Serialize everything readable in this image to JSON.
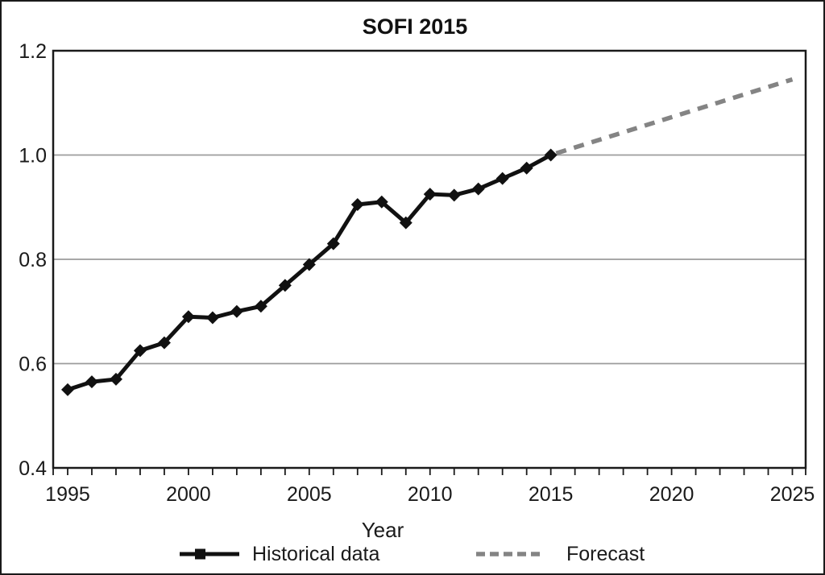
{
  "figure": {
    "title": "SOFI 2015",
    "x_axis_title": "Year"
  },
  "colors": {
    "historical_line": "#111111",
    "forecast_line": "#848484",
    "gridline": "#9c9c9c",
    "frame": "#1a1a1a",
    "background": "#ffffff"
  },
  "legend": {
    "historical_label": "Historical data",
    "forecast_label": "Forecast"
  },
  "chart_data": {
    "type": "line",
    "title": "SOFI 2015",
    "xlabel": "Year",
    "ylabel": "",
    "xlim": [
      1994.4,
      2025.55
    ],
    "ylim": [
      0.4,
      1.2
    ],
    "grid": "horizontal",
    "legend_position": "bottom",
    "x_major_ticks": [
      1995,
      2000,
      2005,
      2010,
      2015,
      2020,
      2025
    ],
    "x_major_tick_labels": [
      "1995",
      "2000",
      "2005",
      "2010",
      "2015",
      "2020",
      "2025"
    ],
    "x_minor_tick_step": 1,
    "y_ticks": [
      0.4,
      0.6,
      0.8,
      1.0,
      1.2
    ],
    "y_tick_labels": [
      "0.4",
      "0.6",
      "0.8",
      "1.0",
      "1.2"
    ],
    "series": [
      {
        "name": "Historical data",
        "style": "solid",
        "color": "#111111",
        "marker": "diamond",
        "x": [
          1995,
          1996,
          1997,
          1998,
          1999,
          2000,
          2001,
          2002,
          2003,
          2004,
          2005,
          2006,
          2007,
          2008,
          2009,
          2010,
          2011,
          2012,
          2013,
          2014,
          2015
        ],
        "values": [
          0.55,
          0.565,
          0.57,
          0.625,
          0.64,
          0.69,
          0.688,
          0.7,
          0.71,
          0.75,
          0.79,
          0.83,
          0.905,
          0.91,
          0.87,
          0.925,
          0.923,
          0.935,
          0.955,
          0.975,
          1.0
        ]
      },
      {
        "name": "Forecast",
        "style": "dashed",
        "color": "#848484",
        "marker": "none",
        "x": [
          2015,
          2025
        ],
        "values": [
          1.0,
          1.145
        ]
      }
    ]
  }
}
